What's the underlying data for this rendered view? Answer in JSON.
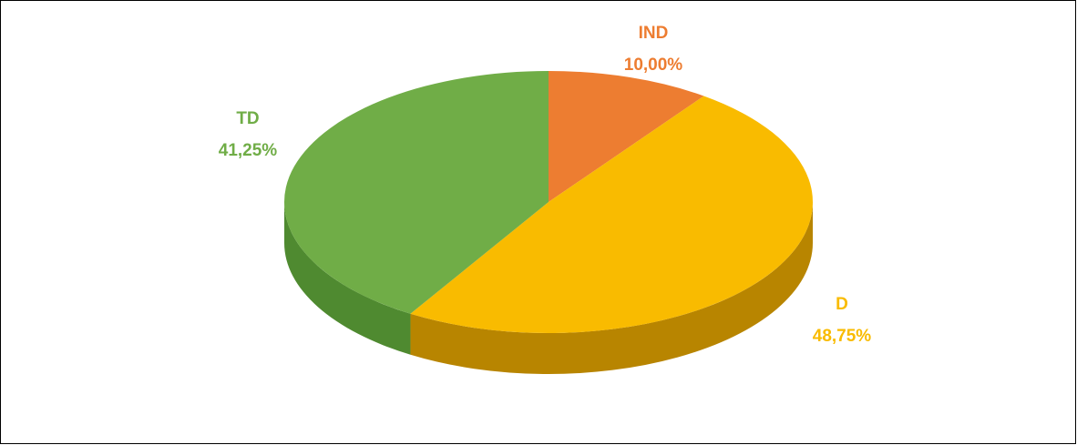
{
  "chart_data": {
    "type": "pie",
    "categories": [
      "IND",
      "D",
      "TD"
    ],
    "values": [
      10,
      48.75,
      41.25
    ],
    "value_labels": [
      "10,00%",
      "48,75%",
      "41,25%"
    ],
    "colors": [
      "#ed7d31",
      "#f9bb00",
      "#70ad47"
    ],
    "side_colors": [
      "#a8551f",
      "#b88500",
      "#4f8a30"
    ]
  }
}
